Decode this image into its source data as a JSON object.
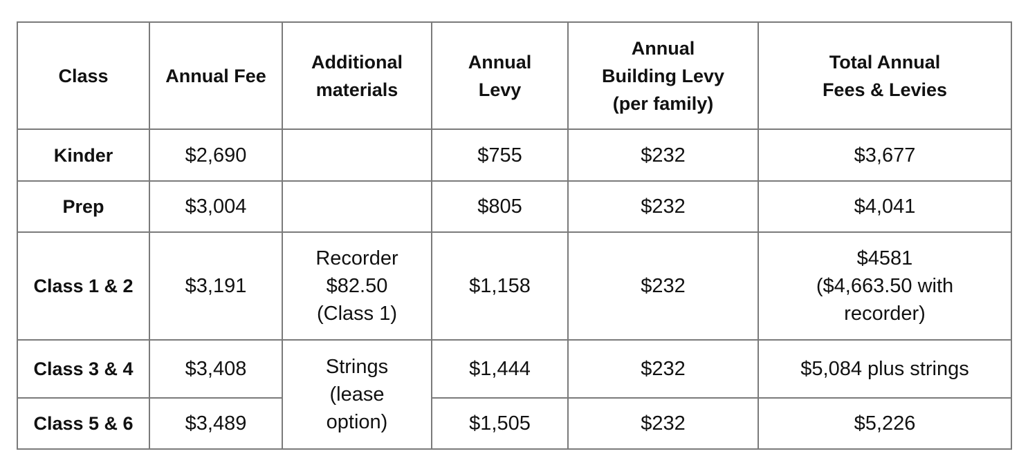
{
  "header": {
    "class": "Class",
    "annual_fee": "Annual Fee",
    "additional_materials": [
      "Additional",
      "materials"
    ],
    "annual_levy": [
      "Annual",
      "Levy"
    ],
    "building_levy": [
      "Annual",
      "Building Levy",
      "(per family)"
    ],
    "total": [
      "Total Annual",
      "Fees & Levies"
    ]
  },
  "rows": [
    {
      "class": "Kinder",
      "annual_fee": "$2,690",
      "additional_materials": [],
      "annual_levy": "$755",
      "building_levy": "$232",
      "total": [
        "$3,677"
      ]
    },
    {
      "class": "Prep",
      "annual_fee": "$3,004",
      "additional_materials": [],
      "annual_levy": "$805",
      "building_levy": "$232",
      "total": [
        "$4,041"
      ]
    },
    {
      "class": "Class 1 & 2",
      "annual_fee": "$3,191",
      "additional_materials": [
        "Recorder",
        "$82.50",
        "(Class 1)"
      ],
      "annual_levy": "$1,158",
      "building_levy": "$232",
      "total": [
        "$4581",
        "($4,663.50 with",
        "recorder)"
      ]
    },
    {
      "class": "Class 3 & 4",
      "annual_fee": "$3,408",
      "additional_materials": [
        "Strings",
        "(lease",
        "option)"
      ],
      "annual_levy": "$1,444",
      "building_levy": "$232",
      "total": [
        "$5,084 plus strings"
      ]
    },
    {
      "class": "Class 5 & 6",
      "annual_fee": "$3,489",
      "annual_levy": "$1,505",
      "building_levy": "$232",
      "total": [
        "$5,226"
      ]
    }
  ]
}
